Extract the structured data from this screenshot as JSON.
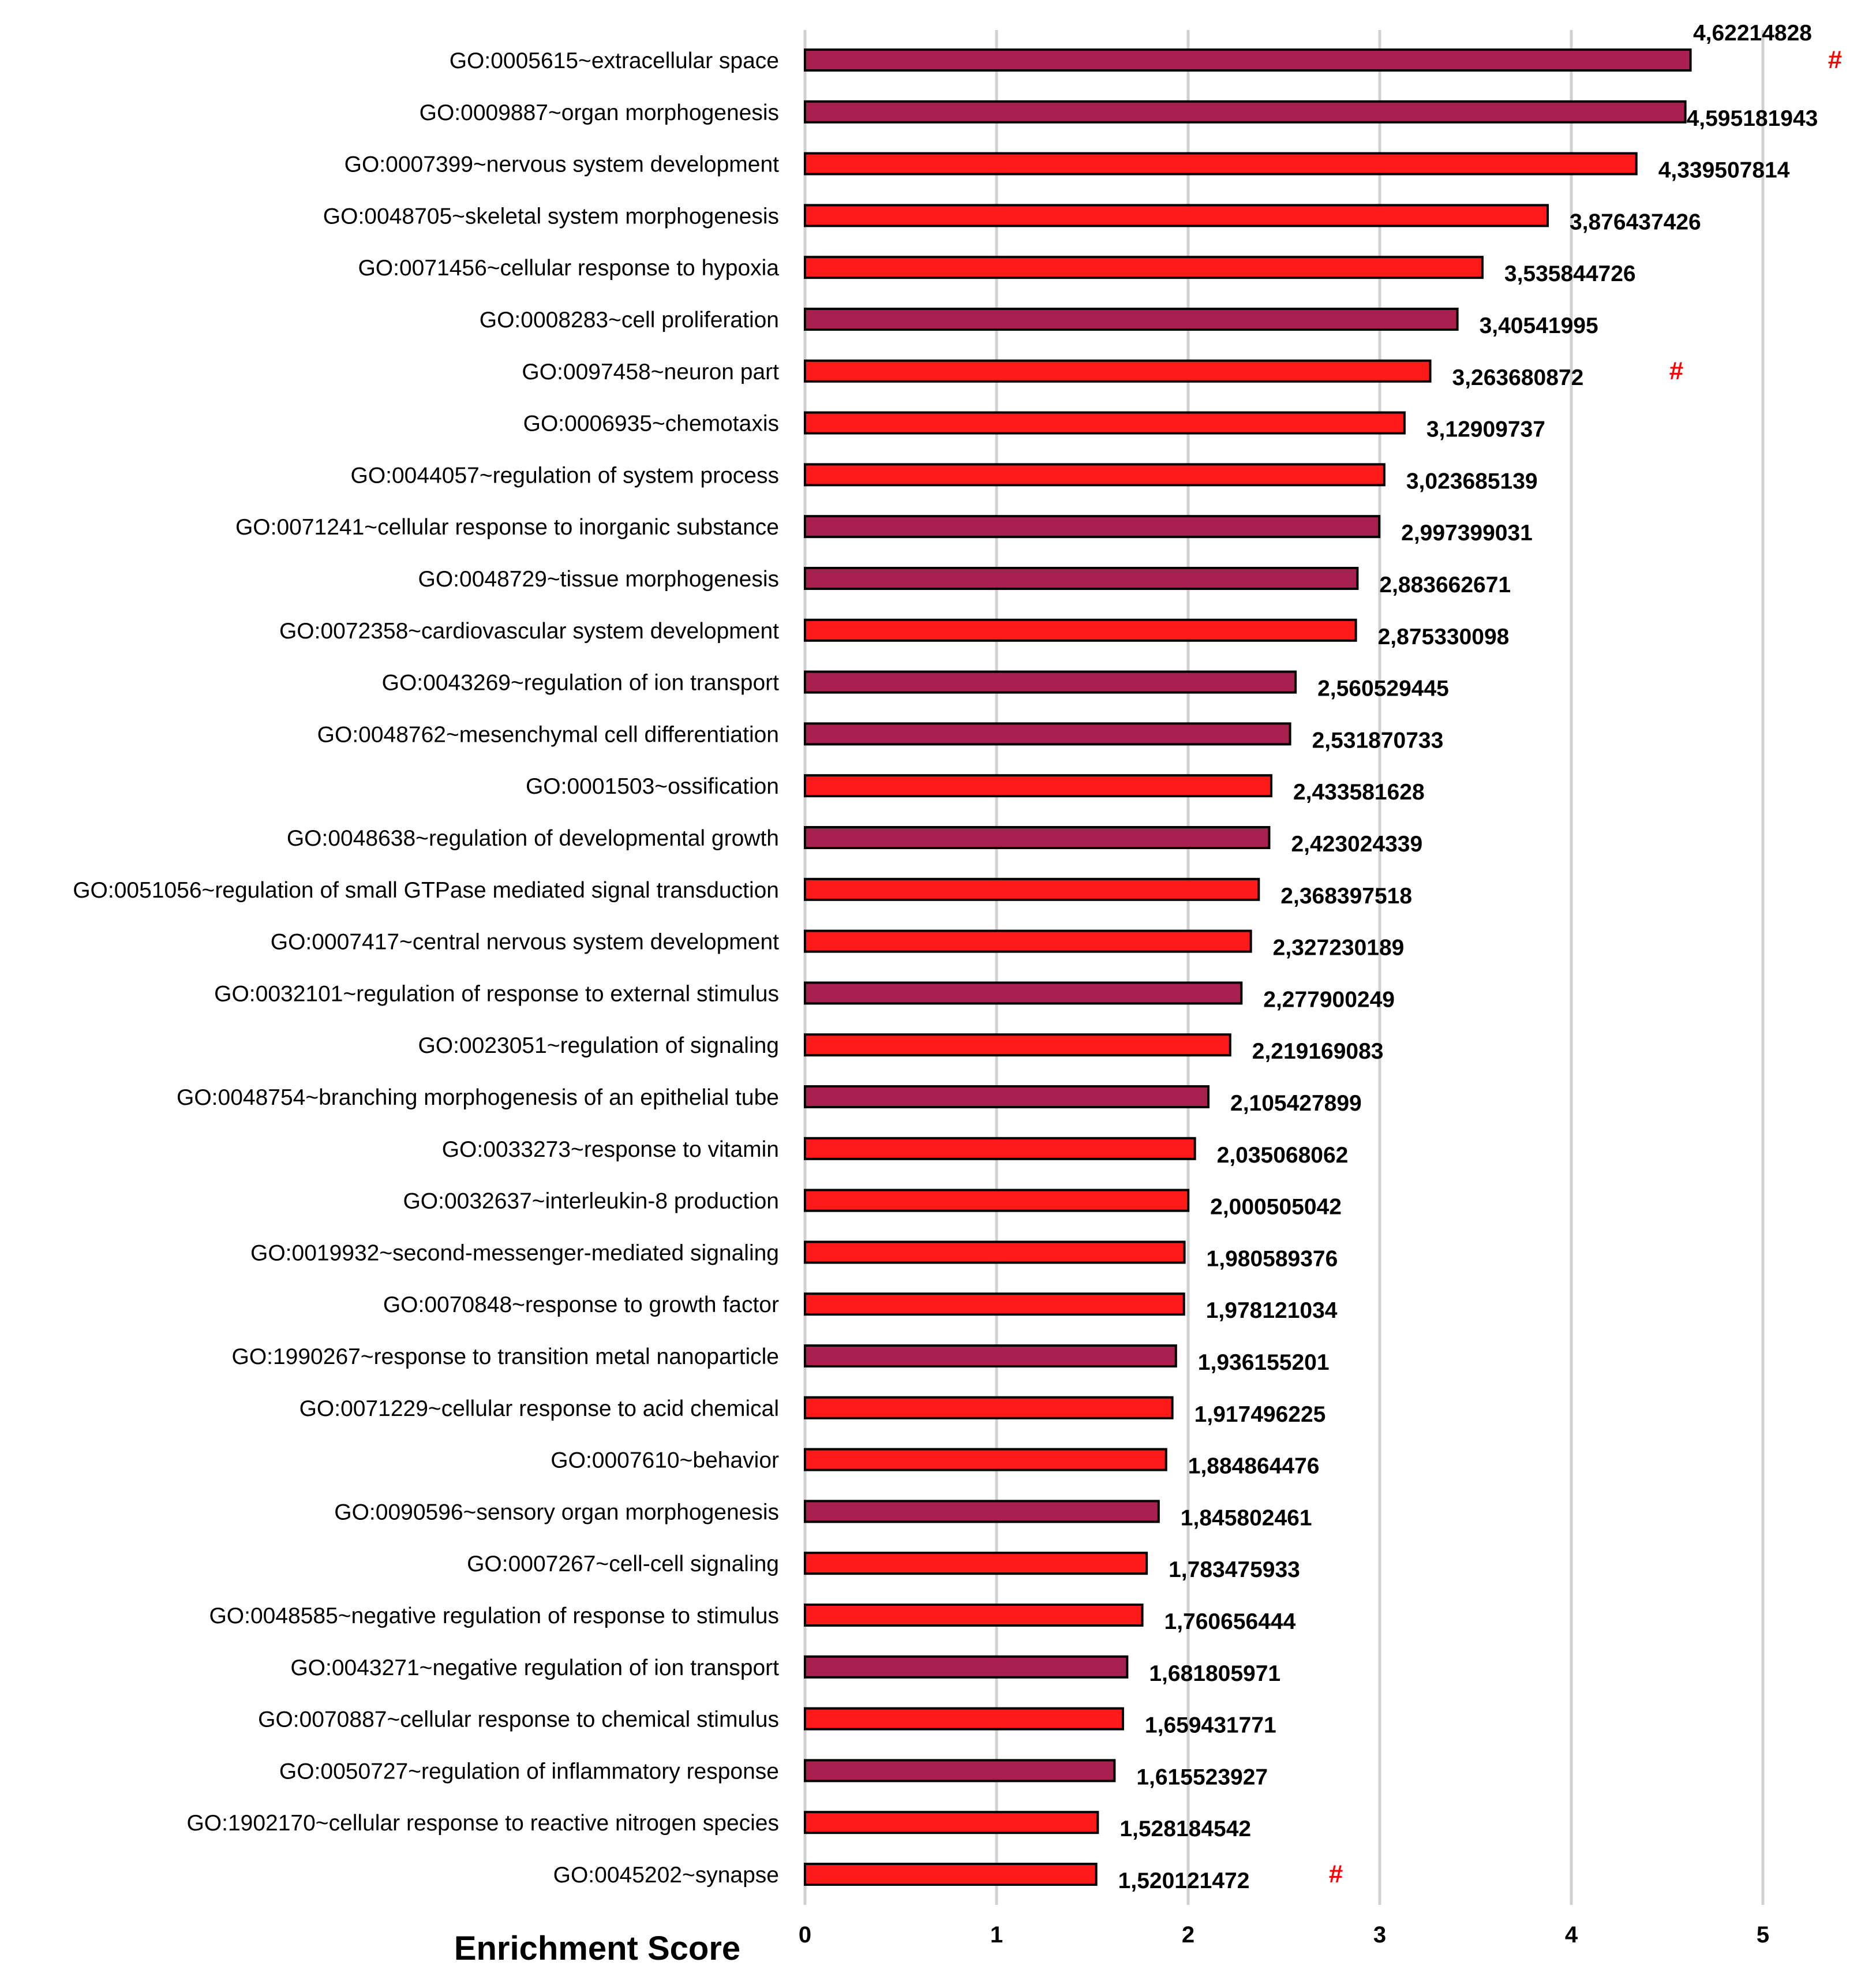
{
  "chart_data": {
    "type": "bar",
    "orientation": "horizontal",
    "xlabel": "Enrichment Score",
    "xlim": [
      0,
      5
    ],
    "xticks": [
      "0",
      "1",
      "2",
      "3",
      "4",
      "5"
    ],
    "grid": "vertical",
    "colors": {
      "red": "#ff1a1a",
      "maroon": "#a8204f",
      "mark": "#ff0000",
      "grid": "#d0d0d0"
    },
    "categories": [
      "GO:0005615~extracellular space",
      "GO:0009887~organ morphogenesis",
      "GO:0007399~nervous system development",
      "GO:0048705~skeletal system morphogenesis",
      "GO:0071456~cellular response to hypoxia",
      "GO:0008283~cell proliferation",
      "GO:0097458~neuron part",
      "GO:0006935~chemotaxis",
      "GO:0044057~regulation of system process",
      "GO:0071241~cellular response to inorganic substance",
      "GO:0048729~tissue morphogenesis",
      "GO:0072358~cardiovascular system development",
      "GO:0043269~regulation of ion transport",
      "GO:0048762~mesenchymal cell differentiation",
      "GO:0001503~ossification",
      "GO:0048638~regulation of developmental growth",
      "GO:0051056~regulation of small GTPase mediated signal transduction",
      "GO:0007417~central nervous system development",
      "GO:0032101~regulation of response to external stimulus",
      "GO:0023051~regulation of signaling",
      "GO:0048754~branching morphogenesis of an epithelial tube",
      "GO:0033273~response to vitamin",
      "GO:0032637~interleukin-8 production",
      "GO:0019932~second-messenger-mediated signaling",
      "GO:0070848~response to growth factor",
      "GO:1990267~response to transition metal nanoparticle",
      "GO:0071229~cellular response to acid chemical",
      "GO:0007610~behavior",
      "GO:0090596~sensory organ morphogenesis",
      "GO:0007267~cell-cell signaling",
      "GO:0048585~negative regulation of response to stimulus",
      "GO:0043271~negative regulation of ion transport",
      "GO:0070887~cellular response to chemical stimulus",
      "GO:0050727~regulation of inflammatory response",
      "GO:1902170~cellular response to reactive nitrogen species",
      "GO:0045202~synapse"
    ],
    "values": [
      4.62214828,
      4.595181943,
      4.339507814,
      3.876437426,
      3.535844726,
      3.40541995,
      3.263680872,
      3.12909737,
      3.023685139,
      2.997399031,
      2.883662671,
      2.875330098,
      2.560529445,
      2.531870733,
      2.433581628,
      2.423024339,
      2.368397518,
      2.327230189,
      2.277900249,
      2.219169083,
      2.105427899,
      2.035068062,
      2.000505042,
      1.980589376,
      1.978121034,
      1.936155201,
      1.917496225,
      1.884864476,
      1.845802461,
      1.783475933,
      1.760656444,
      1.681805971,
      1.659431771,
      1.615523927,
      1.528184542,
      1.520121472
    ],
    "value_labels": [
      "4,62214828",
      "4,595181943",
      "4,339507814",
      "3,876437426",
      "3,535844726",
      "3,40541995",
      "3,263680872",
      "3,12909737",
      "3,023685139",
      "2,997399031",
      "2,883662671",
      "2,875330098",
      "2,560529445",
      "2,531870733",
      "2,433581628",
      "2,423024339",
      "2,368397518",
      "2,327230189",
      "2,277900249",
      "2,219169083",
      "2,105427899",
      "2,035068062",
      "2,000505042",
      "1,980589376",
      "1,978121034",
      "1,936155201",
      "1,917496225",
      "1,884864476",
      "1,845802461",
      "1,783475933",
      "1,760656444",
      "1,681805971",
      "1,659431771",
      "1,615523927",
      "1,528184542",
      "1,520121472"
    ],
    "bar_colors": [
      "maroon",
      "maroon",
      "red",
      "red",
      "red",
      "maroon",
      "red",
      "red",
      "red",
      "maroon",
      "maroon",
      "red",
      "maroon",
      "maroon",
      "red",
      "maroon",
      "red",
      "red",
      "maroon",
      "red",
      "maroon",
      "red",
      "red",
      "red",
      "red",
      "maroon",
      "red",
      "red",
      "maroon",
      "red",
      "red",
      "maroon",
      "red",
      "maroon",
      "red",
      "red"
    ],
    "marked_categories": [
      0,
      6,
      35
    ],
    "mark_symbol": "#"
  }
}
